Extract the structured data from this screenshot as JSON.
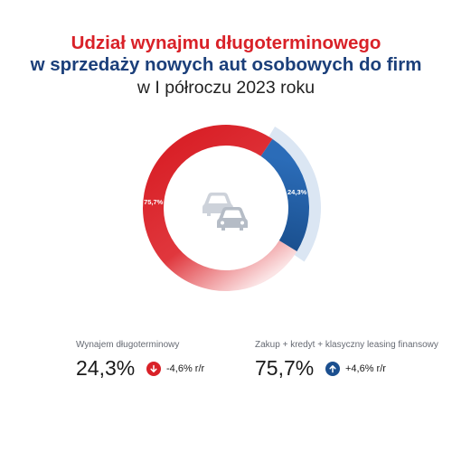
{
  "header": {
    "title_line1": "Udział wynajmu długoterminowego",
    "title_line2": "w sprzedaży nowych aut osobowych do firm",
    "title_line3": "w I półroczu 2023 roku"
  },
  "colors": {
    "red": "#d92128",
    "blue": "#1b4f8f",
    "gray_icon": "#c7ccd4",
    "label_gray": "#666a73"
  },
  "chart_data": {
    "type": "pie",
    "categories": [
      "Wynajem długoterminowy",
      "Zakup + kredyt + klasyczny leasing finansowy"
    ],
    "values": [
      24.3,
      75.7
    ],
    "data_labels": [
      "24,3%",
      "75,7%"
    ]
  },
  "center_icon": "cars-icon",
  "stats": [
    {
      "label": "Wynajem długoterminowy",
      "value": "24,3%",
      "change": "-4,6% r/r",
      "direction": "down",
      "icon": "arrow-down-icon"
    },
    {
      "label": "Zakup + kredyt + klasyczny leasing finansowy",
      "value": "75,7%",
      "change": "+4,6% r/r",
      "direction": "up",
      "icon": "arrow-up-icon"
    }
  ]
}
